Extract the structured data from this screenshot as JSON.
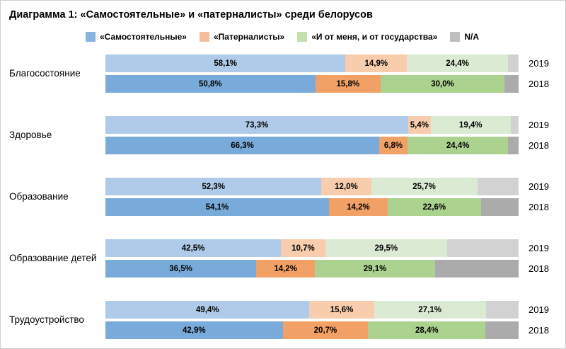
{
  "title": "Диаграмма 1: «Самостоятельные» и «патерналисты» среди белорусов",
  "legend": {
    "items": [
      {
        "key": "independent",
        "label": "«Самостоятельные»",
        "color": "#8AB2DF"
      },
      {
        "key": "paternalists",
        "label": "«Патерналисты»",
        "color": "#F6BE98"
      },
      {
        "key": "both",
        "label": "«И от меня, и от государства»",
        "color": "#C3DFAE"
      },
      {
        "key": "na",
        "label": "N/A",
        "color": "#BFBFBF"
      }
    ]
  },
  "series_colors": {
    "independent": {
      "y2019": "#AFCBE9",
      "y2018": "#79ABDA"
    },
    "paternalists": {
      "y2019": "#F8CDAD",
      "y2018": "#F2A166"
    },
    "both": {
      "y2019": "#DBEAD2",
      "y2018": "#ACD28F"
    },
    "na": {
      "y2019": "#D2D2D2",
      "y2018": "#ABABAB"
    }
  },
  "chart_data": {
    "type": "bar",
    "orientation": "horizontal",
    "stacked": true,
    "unit": "%",
    "xlim": [
      0,
      100
    ],
    "series_order": [
      "independent",
      "paternalists",
      "both",
      "na"
    ],
    "series_names": [
      "«Самостоятельные»",
      "«Патерналисты»",
      "«И от меня, и от государства»",
      "N/A"
    ],
    "years": [
      "2019",
      "2018"
    ],
    "categories": [
      "Благосостояние",
      "Здоровье",
      "Образование",
      "Образование детей",
      "Трудоустройство"
    ],
    "groups": [
      {
        "category": "Благосостояние",
        "bars": [
          {
            "year": "2019",
            "values": [
              58.1,
              14.9,
              24.4,
              2.6
            ],
            "labels": [
              "58,1%",
              "14,9%",
              "24,4%",
              ""
            ]
          },
          {
            "year": "2018",
            "values": [
              50.8,
              15.8,
              30.0,
              3.4
            ],
            "labels": [
              "50,8%",
              "15,8%",
              "30,0%",
              ""
            ]
          }
        ]
      },
      {
        "category": "Здоровье",
        "bars": [
          {
            "year": "2019",
            "values": [
              73.3,
              5.4,
              19.4,
              1.9
            ],
            "labels": [
              "73,3%",
              "5,4%",
              "19,4%",
              ""
            ]
          },
          {
            "year": "2018",
            "values": [
              66.3,
              6.8,
              24.4,
              2.5
            ],
            "labels": [
              "66,3%",
              "6,8%",
              "24,4%",
              ""
            ]
          }
        ]
      },
      {
        "category": "Образование",
        "bars": [
          {
            "year": "2019",
            "values": [
              52.3,
              12.0,
              25.7,
              10.0
            ],
            "labels": [
              "52,3%",
              "12,0%",
              "25,7%",
              ""
            ]
          },
          {
            "year": "2018",
            "values": [
              54.1,
              14.2,
              22.6,
              9.1
            ],
            "labels": [
              "54,1%",
              "14,2%",
              "22,6%",
              ""
            ]
          }
        ]
      },
      {
        "category": "Образование детей",
        "bars": [
          {
            "year": "2019",
            "values": [
              42.5,
              10.7,
              29.5,
              17.3
            ],
            "labels": [
              "42,5%",
              "10,7%",
              "29,5%",
              ""
            ]
          },
          {
            "year": "2018",
            "values": [
              36.5,
              14.2,
              29.1,
              20.2
            ],
            "labels": [
              "36,5%",
              "14,2%",
              "29,1%",
              ""
            ]
          }
        ]
      },
      {
        "category": "Трудоустройство",
        "bars": [
          {
            "year": "2019",
            "values": [
              49.4,
              15.6,
              27.1,
              7.9
            ],
            "labels": [
              "49,4%",
              "15,6%",
              "27,1%",
              ""
            ]
          },
          {
            "year": "2018",
            "values": [
              42.9,
              20.7,
              28.4,
              8.0
            ],
            "labels": [
              "42,9%",
              "20,7%",
              "28,4%",
              ""
            ]
          }
        ]
      }
    ]
  }
}
